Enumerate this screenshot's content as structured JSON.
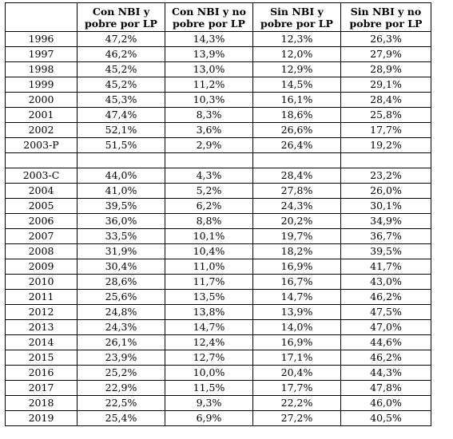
{
  "headers": [
    "",
    "Con NBI y pobre por LP",
    "Con NBI y no pobre por LP",
    "Sin NBI y pobre por LP",
    "Sin NBI y no pobre por LP"
  ],
  "rows": [
    [
      "1996",
      "47,2%",
      "14,3%",
      "12,3%",
      "26,3%"
    ],
    [
      "1997",
      "46,2%",
      "13,9%",
      "12,0%",
      "27,9%"
    ],
    [
      "1998",
      "45,2%",
      "13,0%",
      "12,9%",
      "28,9%"
    ],
    [
      "1999",
      "45,2%",
      "11,2%",
      "14,5%",
      "29,1%"
    ],
    [
      "2000",
      "45,3%",
      "10,3%",
      "16,1%",
      "28,4%"
    ],
    [
      "2001",
      "47,4%",
      "8,3%",
      "18,6%",
      "25,8%"
    ],
    [
      "2002",
      "52,1%",
      "3,6%",
      "26,6%",
      "17,7%"
    ],
    [
      "2003-P",
      "51,5%",
      "2,9%",
      "26,4%",
      "19,2%"
    ],
    [
      "",
      "",
      "",
      "",
      ""
    ],
    [
      "2003-C",
      "44,0%",
      "4,3%",
      "28,4%",
      "23,2%"
    ],
    [
      "2004",
      "41,0%",
      "5,2%",
      "27,8%",
      "26,0%"
    ],
    [
      "2005",
      "39,5%",
      "6,2%",
      "24,3%",
      "30,1%"
    ],
    [
      "2006",
      "36,0%",
      "8,8%",
      "20,2%",
      "34,9%"
    ],
    [
      "2007",
      "33,5%",
      "10,1%",
      "19,7%",
      "36,7%"
    ],
    [
      "2008",
      "31,9%",
      "10,4%",
      "18,2%",
      "39,5%"
    ],
    [
      "2009",
      "30,4%",
      "11,0%",
      "16,9%",
      "41,7%"
    ],
    [
      "2010",
      "28,6%",
      "11,7%",
      "16,7%",
      "43,0%"
    ],
    [
      "2011",
      "25,6%",
      "13,5%",
      "14,7%",
      "46,2%"
    ],
    [
      "2012",
      "24,8%",
      "13,8%",
      "13,9%",
      "47,5%"
    ],
    [
      "2013",
      "24,3%",
      "14,7%",
      "14,0%",
      "47,0%"
    ],
    [
      "2014",
      "26,1%",
      "12,4%",
      "16,9%",
      "44,6%"
    ],
    [
      "2015",
      "23,9%",
      "12,7%",
      "17,1%",
      "46,2%"
    ],
    [
      "2016",
      "25,2%",
      "10,0%",
      "20,4%",
      "44,3%"
    ],
    [
      "2017",
      "22,9%",
      "11,5%",
      "17,7%",
      "47,8%"
    ],
    [
      "2018",
      "22,5%",
      "9,3%",
      "22,2%",
      "46,0%"
    ],
    [
      "2019",
      "25,4%",
      "6,9%",
      "27,2%",
      "40,5%"
    ]
  ]
}
